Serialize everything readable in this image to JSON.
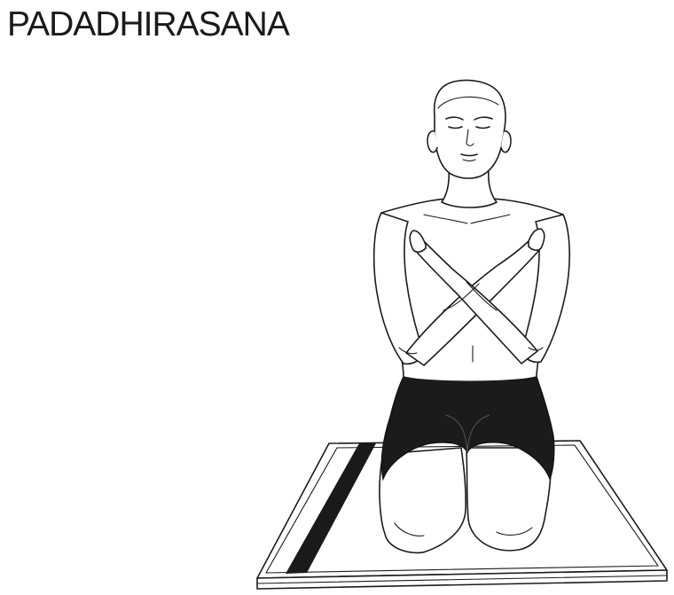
{
  "title": "PADADHIRASANA",
  "illustration": {
    "subject": "kneeling-figure-arms-crossed",
    "colors": {
      "line": "#1c1c1c",
      "shorts": "#1b1b1b",
      "background": "#ffffff"
    }
  }
}
